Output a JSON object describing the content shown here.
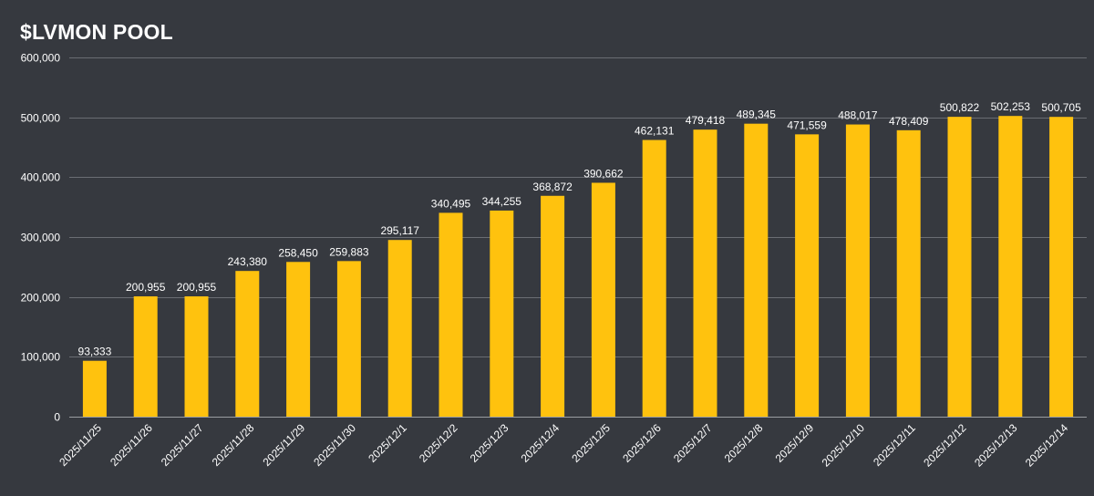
{
  "chart_data": {
    "type": "bar",
    "title": "$LVMON POOL",
    "xlabel": "",
    "ylabel": "",
    "ylim": [
      0,
      600000
    ],
    "yticks": [
      0,
      100000,
      200000,
      300000,
      400000,
      500000,
      600000
    ],
    "ytick_labels": [
      "0",
      "100,000",
      "200,000",
      "300,000",
      "400,000",
      "500,000",
      "600,000"
    ],
    "grid": true,
    "categories": [
      "2025/11/25",
      "2025/11/26",
      "2025/11/27",
      "2025/11/28",
      "2025/11/29",
      "2025/11/30",
      "2025/12/1",
      "2025/12/2",
      "2025/12/3",
      "2025/12/4",
      "2025/12/5",
      "2025/12/6",
      "2025/12/7",
      "2025/12/8",
      "2025/12/9",
      "2025/12/10",
      "2025/12/11",
      "2025/12/12",
      "2025/12/13",
      "2025/12/14"
    ],
    "values": [
      93333,
      200955,
      200955,
      243380,
      258450,
      259883,
      295117,
      340495,
      344255,
      368872,
      390662,
      462131,
      479418,
      489345,
      471559,
      488017,
      478409,
      500822,
      502253,
      500705
    ],
    "data_labels": [
      "93,333",
      "200,955",
      "200,955",
      "243,380",
      "258,450",
      "259,883",
      "295,117",
      "340,495",
      "344,255",
      "368,872",
      "390,662",
      "462,131",
      "479,418",
      "489,345",
      "471,559",
      "488,017",
      "478,409",
      "500,822",
      "502,253",
      "500,705"
    ],
    "colors": {
      "bar": "#ffc20e",
      "background": "#36393f",
      "text": "#ffffff",
      "grid": "#6a6d73"
    }
  }
}
